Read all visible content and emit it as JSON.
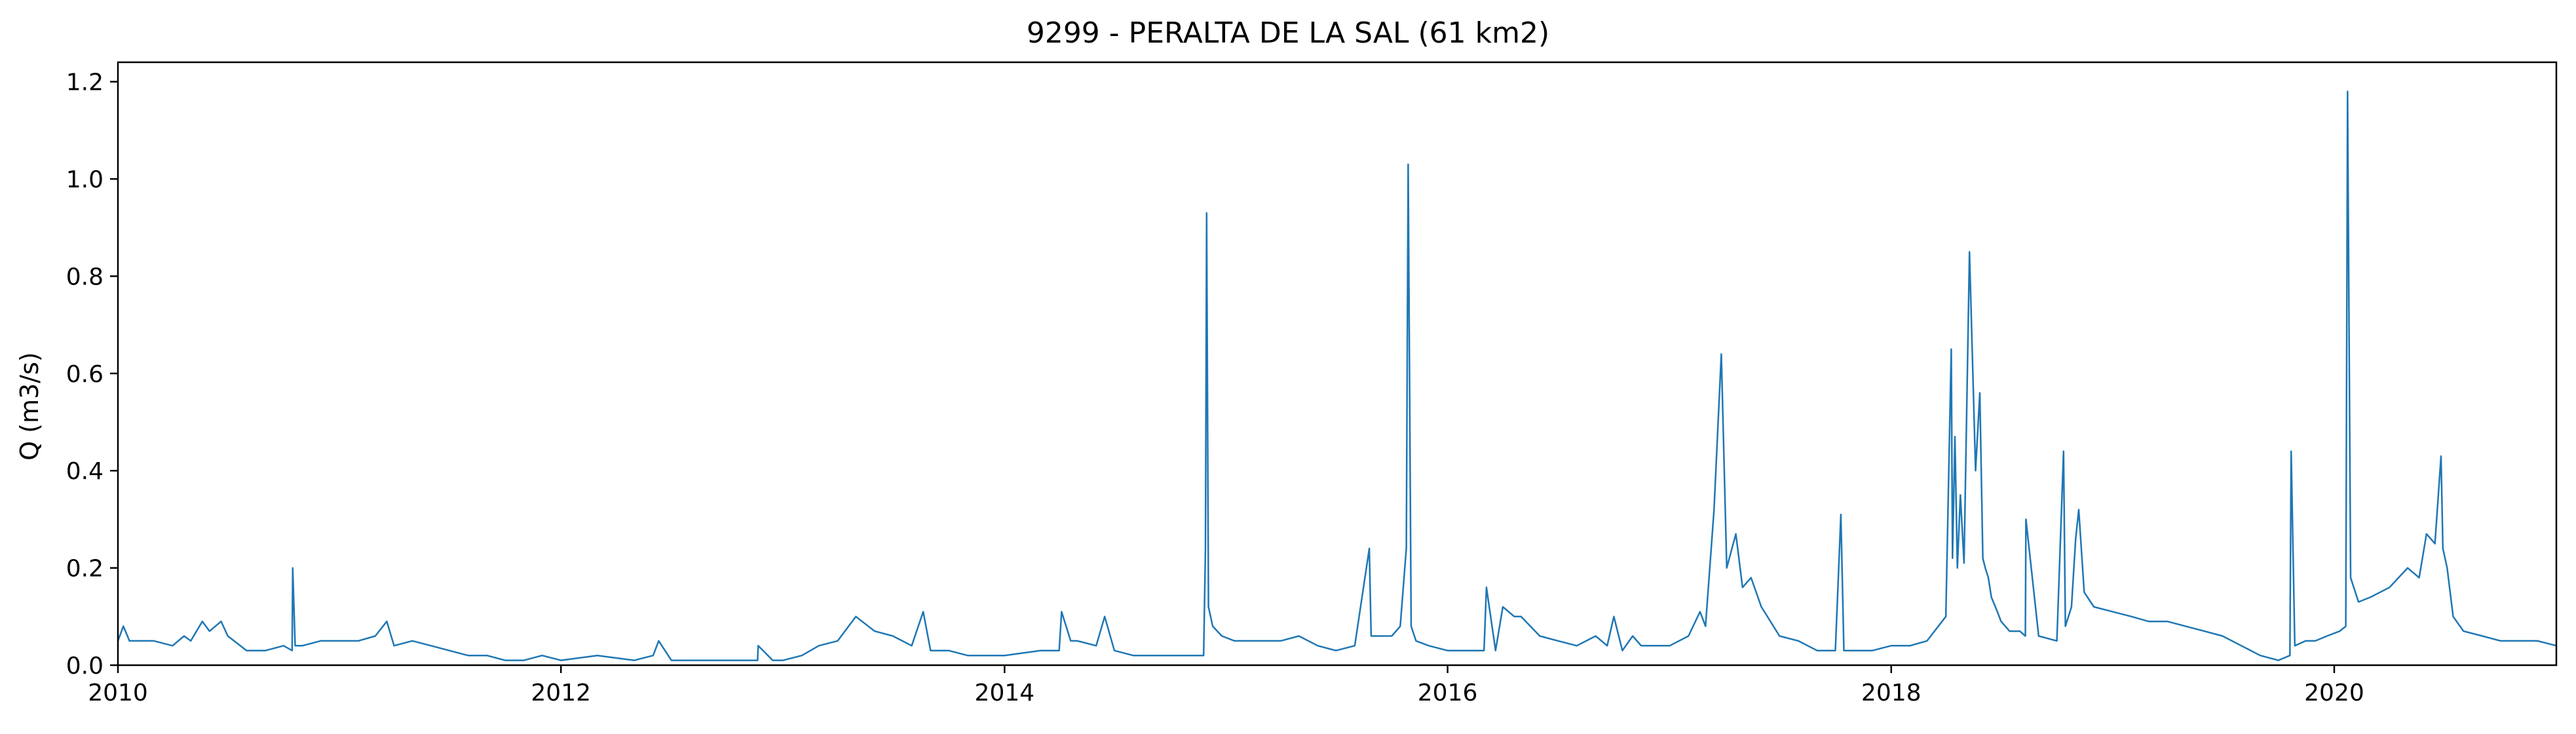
{
  "chart_data": {
    "type": "line",
    "title": "9299 - PERALTA DE LA SAL (61 km2)",
    "xlabel": "",
    "ylabel": "Q (m3/s)",
    "xlim": [
      "2010-01-01",
      "2021-01-01"
    ],
    "ylim": [
      0.0,
      1.24
    ],
    "x_ticks": [
      "2010",
      "2012",
      "2014",
      "2016",
      "2018",
      "2020"
    ],
    "y_ticks": [
      "0.0",
      "0.2",
      "0.4",
      "0.6",
      "0.8",
      "1.0",
      "1.2"
    ],
    "grid": false,
    "legend": "none",
    "line_color": "#1f77b4",
    "series": [
      {
        "x": [
          "2010-01-01",
          "2010-01-10",
          "2010-01-20",
          "2010-02-01",
          "2010-03-01",
          "2010-04-01",
          "2010-04-20",
          "2010-05-01",
          "2010-05-20",
          "2010-06-01",
          "2010-06-20",
          "2010-07-01",
          "2010-08-01",
          "2010-09-01",
          "2010-10-01",
          "2010-10-15",
          "2010-10-16",
          "2010-10-20",
          "2010-11-01",
          "2010-12-01",
          "2011-01-01",
          "2011-02-01",
          "2011-03-01",
          "2011-03-20",
          "2011-04-01",
          "2011-05-01",
          "2011-06-01",
          "2011-07-01",
          "2011-08-01",
          "2011-09-01",
          "2011-10-01",
          "2011-11-01",
          "2011-12-01",
          "2012-01-01",
          "2012-03-01",
          "2012-05-01",
          "2012-06-01",
          "2012-06-10",
          "2012-07-01",
          "2012-08-01",
          "2012-10-01",
          "2012-11-20",
          "2012-11-21",
          "2012-12-15",
          "2013-01-01",
          "2013-02-01",
          "2013-03-01",
          "2013-04-01",
          "2013-05-01",
          "2013-06-01",
          "2013-07-01",
          "2013-08-01",
          "2013-08-20",
          "2013-09-01",
          "2013-10-01",
          "2013-11-01",
          "2013-12-01",
          "2014-01-01",
          "2014-03-01",
          "2014-04-01",
          "2014-04-05",
          "2014-04-20",
          "2014-05-01",
          "2014-06-01",
          "2014-06-15",
          "2014-07-01",
          "2014-08-01",
          "2014-09-01",
          "2014-10-01",
          "2014-11-01",
          "2014-11-25",
          "2014-11-28",
          "2014-11-30",
          "2014-12-03",
          "2014-12-10",
          "2014-12-25",
          "2015-01-15",
          "2015-03-01",
          "2015-04-01",
          "2015-05-01",
          "2015-06-01",
          "2015-07-01",
          "2015-08-01",
          "2015-08-25",
          "2015-08-28",
          "2015-09-10",
          "2015-10-01",
          "2015-10-15",
          "2015-10-25",
          "2015-10-28",
          "2015-11-02",
          "2015-11-10",
          "2015-12-01",
          "2016-01-01",
          "2016-03-01",
          "2016-03-05",
          "2016-03-20",
          "2016-04-01",
          "2016-04-20",
          "2016-05-01",
          "2016-06-01",
          "2016-07-01",
          "2016-08-01",
          "2016-09-01",
          "2016-09-20",
          "2016-10-01",
          "2016-10-15",
          "2016-11-01",
          "2016-11-15",
          "2016-12-01",
          "2017-01-01",
          "2017-02-01",
          "2017-02-20",
          "2017-03-01",
          "2017-03-15",
          "2017-03-27",
          "2017-04-05",
          "2017-04-20",
          "2017-05-01",
          "2017-05-15",
          "2017-06-01",
          "2017-07-01",
          "2017-08-01",
          "2017-09-01",
          "2017-10-01",
          "2017-10-10",
          "2017-10-15",
          "2017-11-01",
          "2017-12-01",
          "2018-01-01",
          "2018-02-01",
          "2018-03-01",
          "2018-04-01",
          "2018-04-10",
          "2018-04-12",
          "2018-04-16",
          "2018-04-20",
          "2018-04-25",
          "2018-05-01",
          "2018-05-10",
          "2018-05-20",
          "2018-05-27",
          "2018-06-01",
          "2018-06-05",
          "2018-06-10",
          "2018-06-15",
          "2018-06-25",
          "2018-07-01",
          "2018-07-15",
          "2018-08-01",
          "2018-08-10",
          "2018-08-11",
          "2018-09-01",
          "2018-10-01",
          "2018-10-12",
          "2018-10-15",
          "2018-10-25",
          "2018-11-01",
          "2018-11-06",
          "2018-11-15",
          "2018-12-01",
          "2019-01-01",
          "2019-02-01",
          "2019-03-01",
          "2019-04-01",
          "2019-05-01",
          "2019-06-01",
          "2019-07-01",
          "2019-08-01",
          "2019-09-01",
          "2019-10-01",
          "2019-10-20",
          "2019-10-22",
          "2019-10-28",
          "2019-11-15",
          "2019-12-01",
          "2019-12-20",
          "2020-01-10",
          "2020-01-20",
          "2020-01-23",
          "2020-01-28",
          "2020-02-10",
          "2020-03-01",
          "2020-04-01",
          "2020-05-01",
          "2020-05-20",
          "2020-06-01",
          "2020-06-15",
          "2020-06-25",
          "2020-06-28",
          "2020-07-05",
          "2020-07-15",
          "2020-08-01",
          "2020-09-01",
          "2020-10-01",
          "2020-11-01",
          "2020-12-01",
          "2021-01-01"
        ],
        "y": [
          0.05,
          0.08,
          0.05,
          0.05,
          0.05,
          0.04,
          0.06,
          0.05,
          0.09,
          0.07,
          0.09,
          0.06,
          0.03,
          0.03,
          0.04,
          0.03,
          0.2,
          0.04,
          0.04,
          0.05,
          0.05,
          0.05,
          0.06,
          0.09,
          0.04,
          0.05,
          0.04,
          0.03,
          0.02,
          0.02,
          0.01,
          0.01,
          0.02,
          0.01,
          0.02,
          0.01,
          0.02,
          0.05,
          0.01,
          0.01,
          0.01,
          0.01,
          0.04,
          0.01,
          0.01,
          0.02,
          0.04,
          0.05,
          0.1,
          0.07,
          0.06,
          0.04,
          0.11,
          0.03,
          0.03,
          0.02,
          0.02,
          0.02,
          0.03,
          0.03,
          0.11,
          0.05,
          0.05,
          0.04,
          0.1,
          0.03,
          0.02,
          0.02,
          0.02,
          0.02,
          0.02,
          0.24,
          0.93,
          0.12,
          0.08,
          0.06,
          0.05,
          0.05,
          0.05,
          0.06,
          0.04,
          0.03,
          0.04,
          0.24,
          0.06,
          0.06,
          0.06,
          0.08,
          0.24,
          1.03,
          0.08,
          0.05,
          0.04,
          0.03,
          0.03,
          0.16,
          0.03,
          0.12,
          0.1,
          0.1,
          0.06,
          0.05,
          0.04,
          0.06,
          0.04,
          0.1,
          0.03,
          0.06,
          0.04,
          0.04,
          0.04,
          0.06,
          0.11,
          0.08,
          0.32,
          0.64,
          0.2,
          0.27,
          0.16,
          0.18,
          0.12,
          0.06,
          0.05,
          0.03,
          0.03,
          0.31,
          0.03,
          0.03,
          0.03,
          0.04,
          0.04,
          0.05,
          0.1,
          0.65,
          0.22,
          0.47,
          0.2,
          0.35,
          0.21,
          0.85,
          0.4,
          0.56,
          0.22,
          0.2,
          0.18,
          0.14,
          0.11,
          0.09,
          0.07,
          0.07,
          0.06,
          0.3,
          0.06,
          0.05,
          0.44,
          0.08,
          0.12,
          0.26,
          0.32,
          0.15,
          0.12,
          0.11,
          0.1,
          0.09,
          0.09,
          0.08,
          0.07,
          0.06,
          0.04,
          0.02,
          0.01,
          0.02,
          0.44,
          0.04,
          0.05,
          0.05,
          0.06,
          0.07,
          0.08,
          1.18,
          0.18,
          0.13,
          0.14,
          0.16,
          0.2,
          0.18,
          0.27,
          0.25,
          0.43,
          0.24,
          0.2,
          0.1,
          0.07,
          0.06,
          0.05,
          0.05,
          0.05,
          0.04
        ]
      }
    ]
  }
}
